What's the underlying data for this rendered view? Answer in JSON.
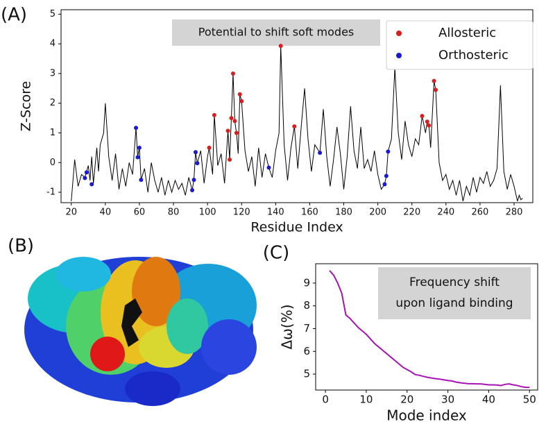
{
  "chart_data": [
    {
      "type": "line",
      "label": "(A)",
      "xlabel": "Residue Index",
      "ylabel": "Z-Score",
      "annotation": "Potential to shift soft modes",
      "xlim": [
        14,
        291
      ],
      "ylim": [
        -1.35,
        5.15
      ],
      "xticks": [
        20,
        40,
        60,
        80,
        100,
        120,
        140,
        160,
        180,
        200,
        220,
        240,
        260,
        280
      ],
      "yticks": [
        -1,
        0,
        1,
        2,
        3,
        4,
        5
      ],
      "legend": "upper right",
      "series": [
        {
          "type": "line",
          "color": "#000000",
          "x": [
            20,
            22,
            24,
            26,
            28,
            30,
            31,
            32,
            33,
            35,
            36,
            37,
            39,
            40,
            42,
            44,
            46,
            48,
            50,
            52,
            54,
            56,
            58,
            59,
            60,
            61,
            63,
            65,
            67,
            69,
            71,
            73,
            75,
            77,
            79,
            81,
            83,
            85,
            87,
            89,
            91,
            92,
            93,
            94,
            96,
            98,
            100,
            101,
            103,
            104,
            106,
            108,
            110,
            112,
            113,
            114,
            115,
            116,
            117,
            118,
            119,
            120,
            122,
            124,
            126,
            128,
            130,
            132,
            134,
            136,
            138,
            140,
            142,
            143,
            145,
            147,
            149,
            151,
            153,
            155,
            157,
            159,
            161,
            163,
            166,
            168,
            170,
            172,
            174,
            176,
            178,
            180,
            182,
            184,
            186,
            188,
            190,
            192,
            194,
            196,
            198,
            200,
            202,
            204,
            205,
            206,
            208,
            210,
            212,
            214,
            216,
            218,
            220,
            222,
            224,
            226,
            228,
            229,
            230,
            231,
            233,
            234,
            236,
            238,
            240,
            242,
            244,
            246,
            248,
            250,
            252,
            254,
            256,
            258,
            260,
            262,
            264,
            266,
            268,
            270,
            272,
            274,
            276,
            278,
            280,
            282,
            283,
            284,
            285
          ],
          "values": [
            -1.3,
            0.1,
            -0.8,
            -0.4,
            -0.5,
            -0.1,
            -0.6,
            0.2,
            -0.7,
            0.5,
            -0.3,
            0.6,
            1.0,
            2.0,
            0.2,
            -0.6,
            0.3,
            -0.9,
            -0.2,
            -0.8,
            0.0,
            -0.4,
            1.17,
            0.18,
            0.5,
            -0.58,
            -0.2,
            -1.0,
            0.0,
            -0.6,
            -1.0,
            -0.5,
            -1.1,
            -0.6,
            -1.0,
            -0.6,
            -0.9,
            -0.7,
            -1.1,
            -0.5,
            -0.93,
            -0.58,
            0.35,
            -0.02,
            0.4,
            -0.7,
            0.2,
            0.5,
            -0.4,
            1.6,
            -0.1,
            0.3,
            -0.7,
            1.07,
            0.1,
            1.5,
            3.0,
            1.4,
            1.0,
            0.3,
            2.3,
            2.07,
            0.4,
            -0.3,
            0.2,
            -0.8,
            0.5,
            -0.5,
            0.3,
            -0.17,
            -0.5,
            0.4,
            1.0,
            3.93,
            0.6,
            -0.6,
            0.5,
            1.22,
            -0.2,
            1.2,
            2.5,
            0.8,
            -0.3,
            0.6,
            0.33,
            1.8,
            0.2,
            -0.8,
            0.1,
            1.2,
            0.3,
            -0.9,
            0.2,
            1.9,
            0.4,
            -0.2,
            1.2,
            -0.2,
            0.1,
            -0.3,
            0.4,
            -0.4,
            -0.9,
            -0.73,
            -0.45,
            0.37,
            0.8,
            3.2,
            1.0,
            0.1,
            1.4,
            0.6,
            0.2,
            0.8,
            0.6,
            1.57,
            1.0,
            1.38,
            1.25,
            0.5,
            2.75,
            2.45,
            0.0,
            -0.6,
            -0.4,
            -0.9,
            -0.6,
            -1.1,
            -0.6,
            -1.3,
            -0.8,
            -1.1,
            -0.5,
            -1.0,
            -0.5,
            -0.7,
            -0.3,
            -0.8,
            -0.6,
            -0.2,
            2.6,
            -0.3,
            -0.9,
            -0.4,
            -0.8,
            -1.3,
            -1.1,
            -1.25,
            -1.2
          ]
        },
        {
          "type": "scatter",
          "name": "Allosteric",
          "color": "#d81e1e",
          "x": [
            101,
            104,
            112,
            113,
            114,
            115,
            116,
            117,
            119,
            120,
            143,
            151,
            226,
            229,
            230,
            233,
            234
          ],
          "values": [
            0.5,
            1.6,
            1.07,
            0.1,
            1.5,
            3.0,
            1.4,
            1.0,
            2.3,
            2.07,
            3.93,
            1.22,
            1.57,
            1.38,
            1.25,
            2.75,
            2.45
          ]
        },
        {
          "type": "scatter",
          "name": "Orthosteric",
          "color": "#1a1ad2",
          "x": [
            28,
            29,
            32,
            58,
            59,
            60,
            61,
            91,
            92,
            93,
            94,
            136,
            166,
            204,
            205,
            206
          ],
          "values": [
            -0.52,
            -0.33,
            -0.73,
            1.17,
            0.18,
            0.5,
            -0.58,
            -0.93,
            -0.58,
            0.35,
            -0.02,
            -0.17,
            0.33,
            -0.73,
            -0.45,
            0.37
          ]
        }
      ]
    },
    {
      "type": "image",
      "label": "(B)"
    },
    {
      "type": "line",
      "label": "(C)",
      "xlabel": "Mode index",
      "ylabel": "Δω(%)",
      "annotation": [
        "Frequency shift",
        "upon ligand binding"
      ],
      "xlim": [
        -2.4,
        52
      ],
      "ylim": [
        4.3,
        9.85
      ],
      "xticks": [
        0,
        10,
        20,
        30,
        40,
        50
      ],
      "yticks": [
        5,
        6,
        7,
        8,
        9
      ],
      "series": [
        {
          "type": "line",
          "color": "#a612b4",
          "x": [
            1,
            2,
            3,
            4,
            5,
            6,
            7,
            8,
            9,
            10,
            11,
            12,
            13,
            14,
            15,
            16,
            17,
            18,
            19,
            20,
            21,
            22,
            23,
            24,
            25,
            26,
            27,
            28,
            29,
            30,
            31,
            32,
            33,
            34,
            35,
            36,
            37,
            38,
            39,
            40,
            41,
            42,
            43,
            44,
            45,
            46,
            47,
            48,
            49,
            50
          ],
          "values": [
            9.55,
            9.35,
            9.0,
            8.55,
            7.6,
            7.45,
            7.25,
            7.05,
            6.9,
            6.75,
            6.55,
            6.35,
            6.2,
            6.05,
            5.9,
            5.75,
            5.6,
            5.45,
            5.3,
            5.2,
            5.1,
            4.98,
            4.95,
            4.9,
            4.86,
            4.83,
            4.8,
            4.78,
            4.75,
            4.72,
            4.7,
            4.65,
            4.62,
            4.6,
            4.58,
            4.58,
            4.57,
            4.57,
            4.55,
            4.53,
            4.53,
            4.52,
            4.5,
            4.55,
            4.57,
            4.53,
            4.5,
            4.45,
            4.42,
            4.42
          ]
        }
      ]
    }
  ]
}
